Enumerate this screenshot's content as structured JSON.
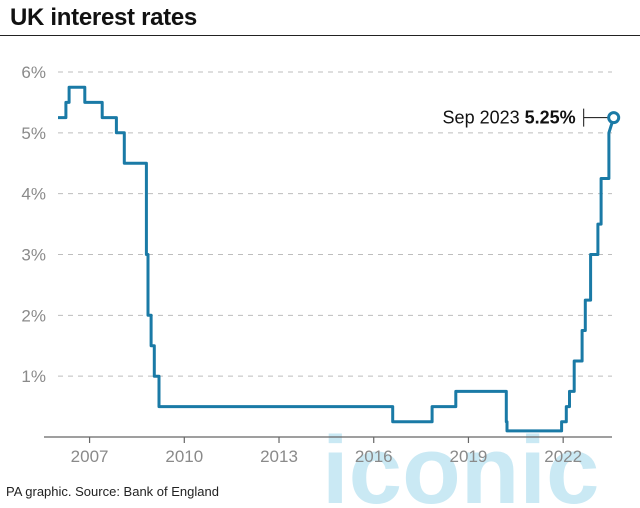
{
  "header": {
    "title": "UK interest rates"
  },
  "footer": {
    "source": "PA graphic. Source: Bank of England"
  },
  "watermark": {
    "text": "iconic"
  },
  "colors": {
    "line": "#1a7aa6",
    "grid": "#bdbdbd",
    "ticks": "#8a8a8a",
    "watermark": "#9fd8ec"
  },
  "chart_data": {
    "type": "line",
    "title": "UK interest rates",
    "xlabel": "",
    "ylabel": "",
    "xlim": [
      2006.0,
      2023.8
    ],
    "ylim": [
      0,
      6
    ],
    "x_ticks": [
      2007,
      2010,
      2013,
      2016,
      2019,
      2022
    ],
    "x_tick_labels": [
      "2007",
      "2010",
      "2013",
      "2016",
      "2019",
      "2022"
    ],
    "y_ticks": [
      1,
      2,
      3,
      4,
      5,
      6
    ],
    "y_tick_labels": [
      "1%",
      "2%",
      "3%",
      "4%",
      "5%",
      "6%"
    ],
    "grid": "horizontal dashed",
    "series": [
      {
        "x": [
          2006.0,
          2006.25,
          2006.25,
          2006.35,
          2006.35,
          2006.85,
          2006.85,
          2007.4,
          2007.4,
          2007.85,
          2007.85,
          2008.1,
          2008.1,
          2008.8,
          2008.8,
          2008.85,
          2008.85,
          2008.95,
          2008.95,
          2009.05,
          2009.05,
          2009.2,
          2009.2,
          2016.6,
          2016.6,
          2017.85,
          2017.85,
          2018.6,
          2018.6,
          2020.2,
          2020.2,
          2020.22,
          2020.22,
          2021.95,
          2021.95,
          2022.1,
          2022.1,
          2022.2,
          2022.2,
          2022.35,
          2022.35,
          2022.6,
          2022.6,
          2022.7,
          2022.7,
          2022.87,
          2022.87,
          2023.1,
          2023.1,
          2023.2,
          2023.2,
          2023.45,
          2023.45,
          2023.6
        ],
        "y": [
          5.25,
          5.25,
          5.5,
          5.5,
          5.75,
          5.75,
          5.5,
          5.5,
          5.25,
          5.25,
          5.0,
          5.0,
          4.5,
          4.5,
          3.0,
          3.0,
          2.0,
          2.0,
          1.5,
          1.5,
          1.0,
          1.0,
          0.5,
          0.5,
          0.25,
          0.25,
          0.5,
          0.5,
          0.75,
          0.75,
          0.25,
          0.25,
          0.1,
          0.1,
          0.25,
          0.25,
          0.5,
          0.5,
          0.75,
          0.75,
          1.25,
          1.25,
          1.75,
          1.75,
          2.25,
          2.25,
          3.0,
          3.0,
          3.5,
          3.5,
          4.25,
          4.25,
          5.0,
          5.25
        ]
      }
    ],
    "annotation": {
      "label": "Sep 2023",
      "value_label": "5.25%",
      "x": 2023.6,
      "y": 5.25
    }
  }
}
